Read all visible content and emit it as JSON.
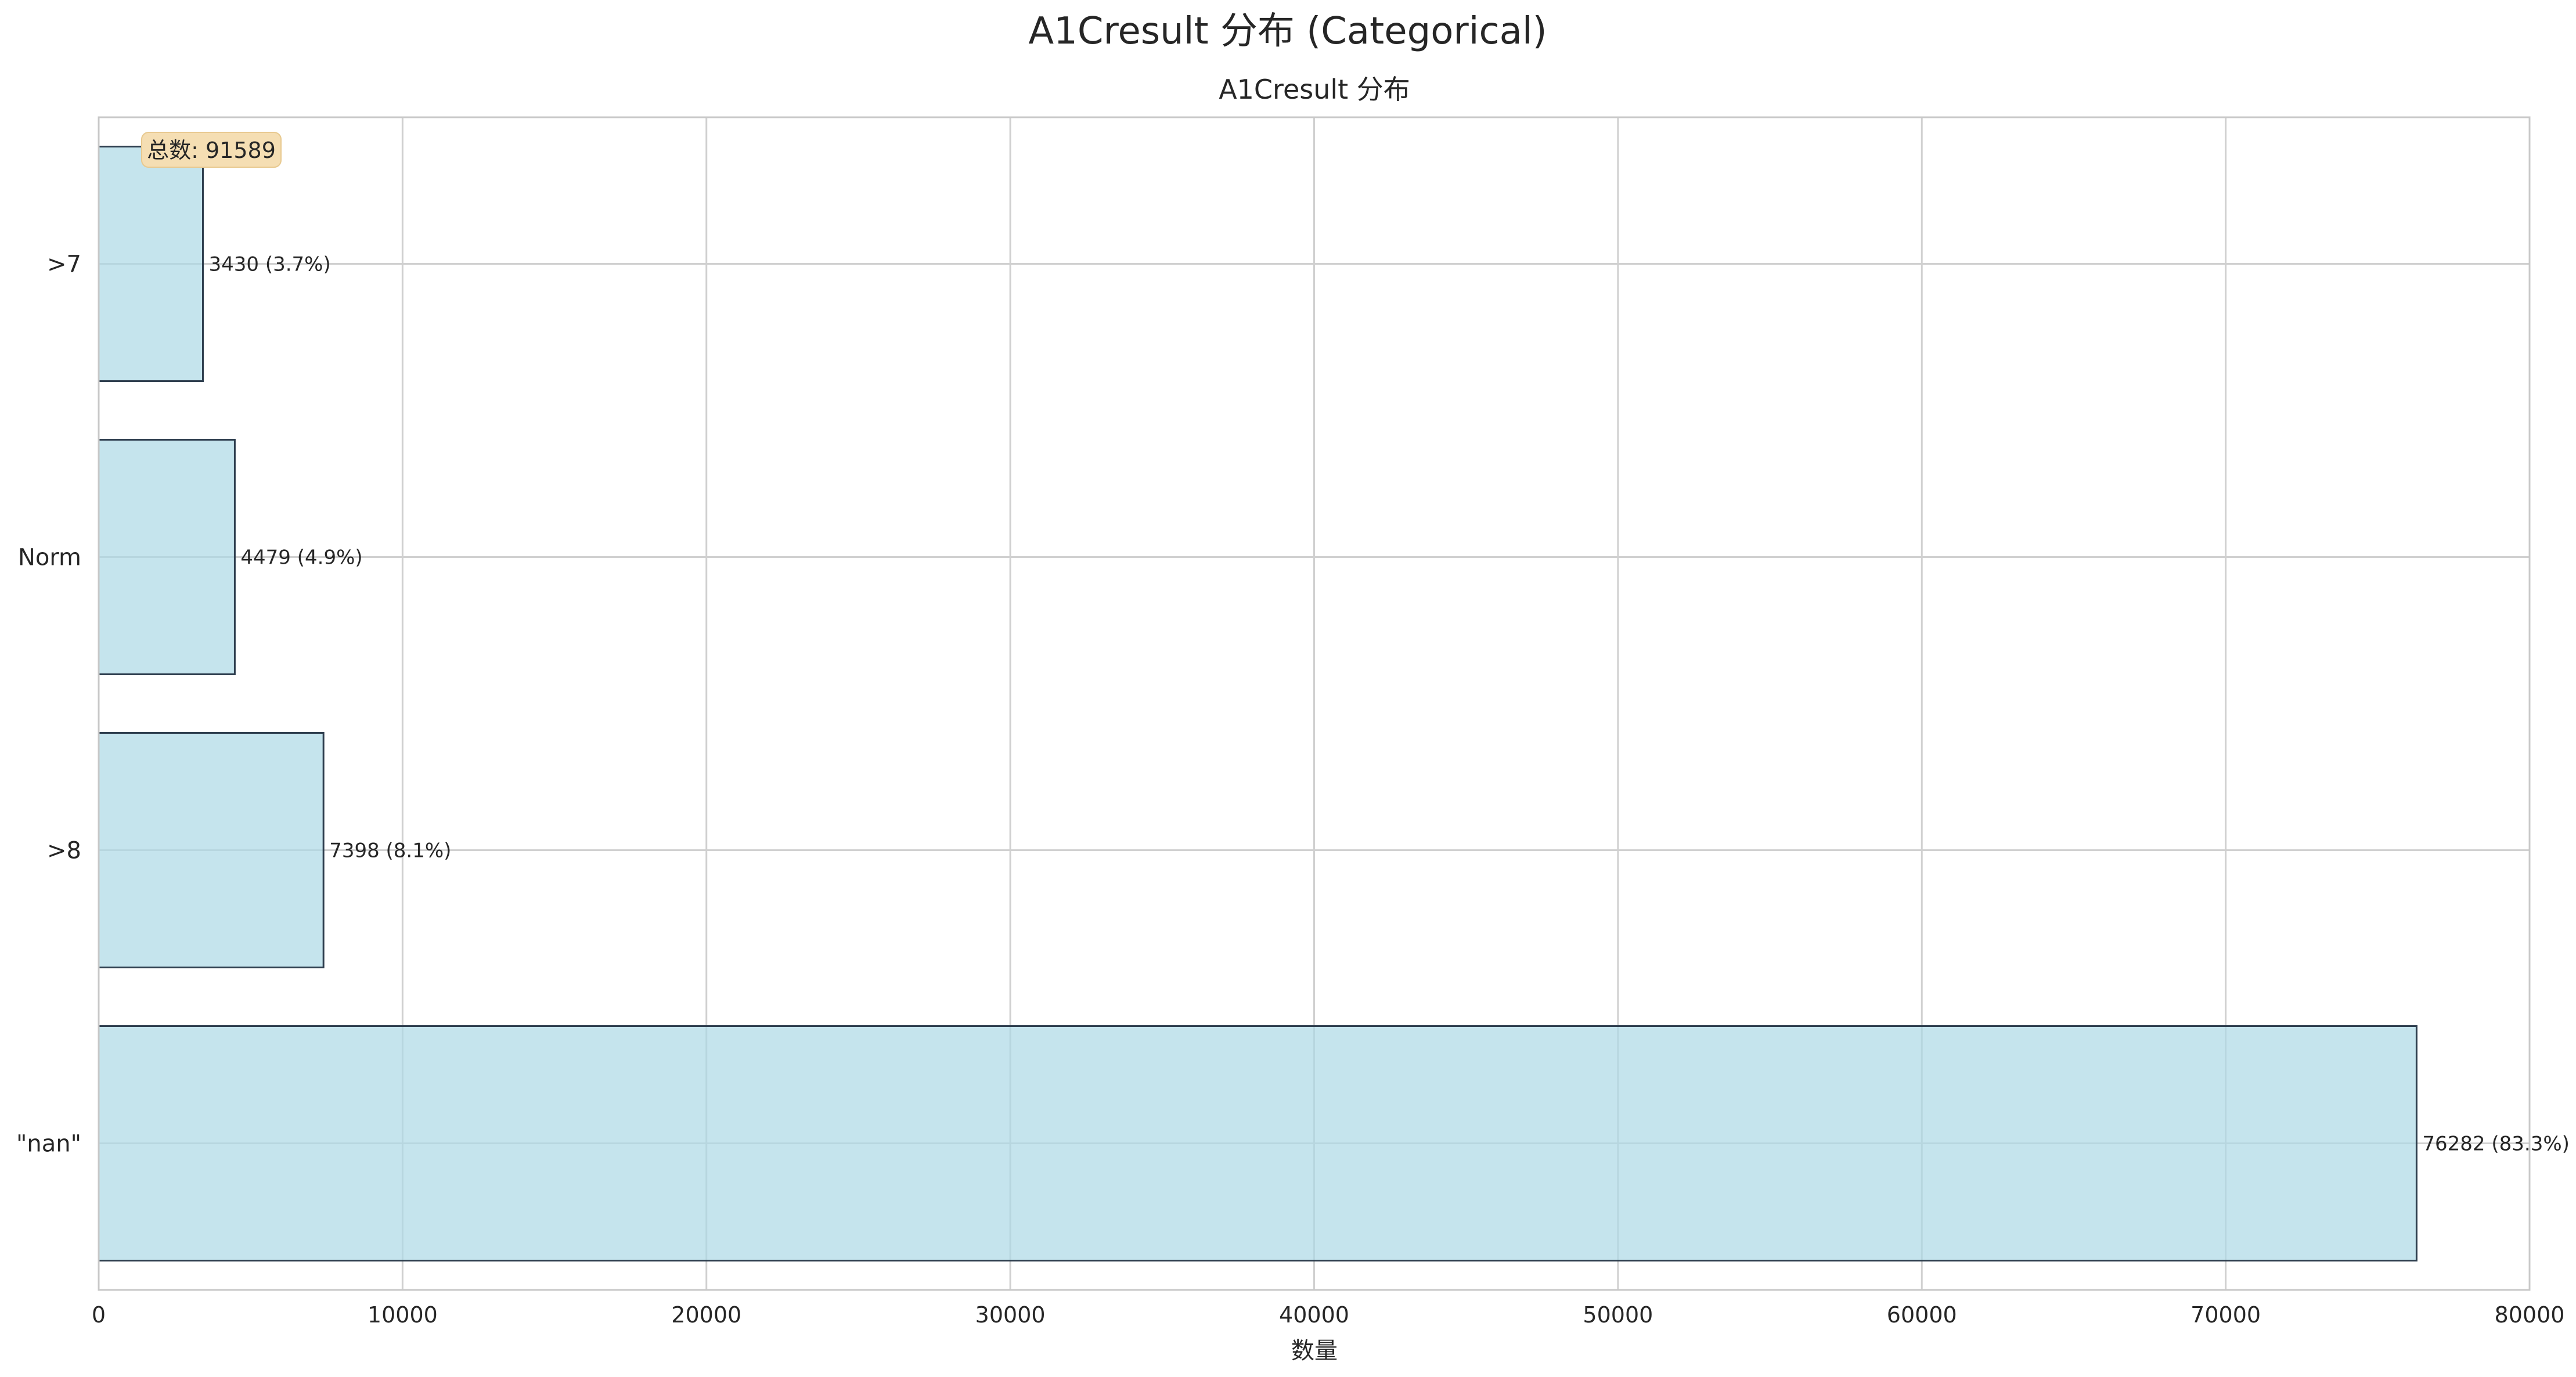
{
  "chart_data": {
    "type": "bar",
    "orientation": "horizontal",
    "title": "A1Cresult 分布 (Categorical)",
    "subtitle": "A1Cresult 分布",
    "xlabel": "数量",
    "ylabel": "",
    "xlim": [
      0,
      80000
    ],
    "x_ticks": [
      "0",
      "10000",
      "20000",
      "30000",
      "40000",
      "50000",
      "60000",
      "70000",
      "80000"
    ],
    "categories": [
      ">7",
      "Norm",
      ">8",
      "\"nan\""
    ],
    "values": [
      3430,
      4479,
      7398,
      76282
    ],
    "data_labels": [
      "3430 (3.7%)",
      "4479 (4.9%)",
      "7398 (8.1%)",
      "76282 (83.3%)"
    ],
    "annotation": "总数: 91589",
    "grid": true,
    "colors": {
      "bar_fill": "#add8e6",
      "bar_edge": "#2f3f4f",
      "grid": "#d0d0d0",
      "annotation_bg": "#f5deb3"
    }
  }
}
